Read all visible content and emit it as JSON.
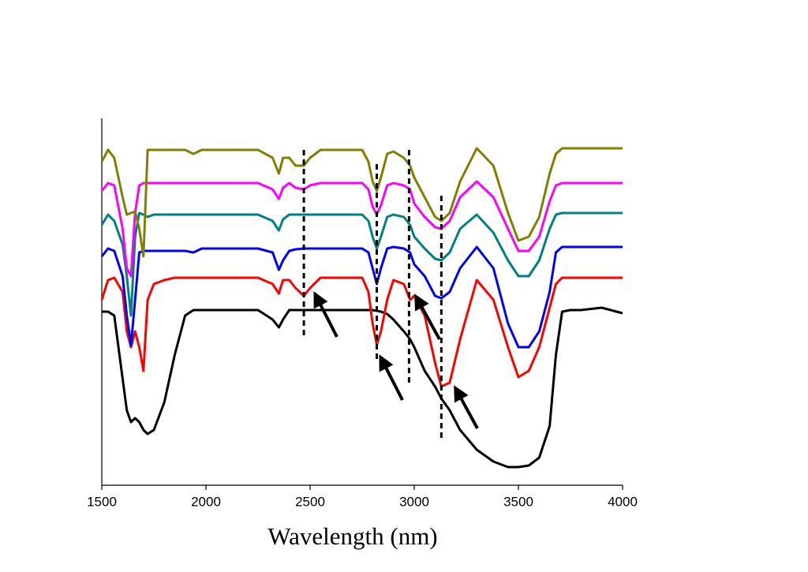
{
  "chart_data": {
    "type": "line",
    "x_label": "Wavelength (nm)",
    "xlim": [
      1500,
      4000
    ],
    "xticks": [
      1500,
      2000,
      2500,
      3000,
      3500,
      4000
    ],
    "ylim": [
      0,
      465
    ],
    "x": [
      1500,
      1530,
      1560,
      1600,
      1620,
      1640,
      1660,
      1680,
      1700,
      1720,
      1750,
      1800,
      1850,
      1900,
      1940,
      1980,
      2050,
      2150,
      2250,
      2320,
      2350,
      2370,
      2400,
      2430,
      2470,
      2500,
      2550,
      2650,
      2750,
      2780,
      2800,
      2820,
      2840,
      2870,
      2900,
      2950,
      2980,
      3000,
      3050,
      3100,
      3130,
      3170,
      3220,
      3300,
      3380,
      3450,
      3500,
      3550,
      3600,
      3650,
      3680,
      3710,
      3750,
      3800,
      3900,
      4000
    ],
    "series": [
      {
        "color": "#000000",
        "values": [
          220,
          220,
          215,
          135,
          95,
          80,
          85,
          80,
          70,
          65,
          70,
          105,
          165,
          215,
          222,
          222,
          222,
          222,
          222,
          210,
          200,
          210,
          222,
          222,
          222,
          222,
          222,
          222,
          222,
          222,
          222,
          221,
          220,
          217,
          210,
          195,
          185,
          175,
          145,
          125,
          110,
          95,
          70,
          45,
          30,
          23,
          23,
          25,
          35,
          75,
          165,
          220,
          222,
          222,
          225,
          218
        ]
      },
      {
        "color": "#ff0000",
        "values": [
          235,
          260,
          263,
          245,
          195,
          175,
          195,
          175,
          145,
          235,
          255,
          260,
          263,
          263,
          263,
          263,
          263,
          263,
          263,
          255,
          243,
          260,
          260,
          250,
          240,
          250,
          263,
          263,
          263,
          245,
          205,
          178,
          195,
          235,
          260,
          255,
          235,
          240,
          215,
          155,
          125,
          130,
          185,
          260,
          235,
          175,
          137,
          145,
          175,
          225,
          255,
          263,
          263,
          263,
          263,
          263
        ]
      },
      {
        "color": "#0000ff",
        "values": [
          290,
          300,
          297,
          265,
          215,
          177,
          235,
          295,
          297,
          297,
          297,
          297,
          297,
          297,
          295,
          300,
          300,
          300,
          300,
          295,
          273,
          285,
          297,
          299,
          300,
          300,
          300,
          300,
          300,
          295,
          275,
          255,
          275,
          300,
          302,
          300,
          295,
          280,
          265,
          240,
          237,
          245,
          275,
          302,
          275,
          205,
          175,
          175,
          195,
          245,
          295,
          302,
          302,
          302,
          302,
          302
        ]
      },
      {
        "color": "#008080",
        "values": [
          330,
          343,
          335,
          305,
          265,
          215,
          315,
          345,
          343,
          340,
          343,
          343,
          343,
          343,
          343,
          343,
          343,
          343,
          343,
          335,
          323,
          337,
          343,
          343,
          343,
          343,
          343,
          343,
          343,
          335,
          315,
          300,
          315,
          340,
          343,
          340,
          330,
          315,
          300,
          287,
          285,
          295,
          325,
          343,
          320,
          285,
          265,
          265,
          285,
          325,
          343,
          345,
          345,
          345,
          345,
          345
        ]
      },
      {
        "color": "#ff00ff",
        "values": [
          373,
          383,
          380,
          325,
          275,
          265,
          345,
          380,
          383,
          383,
          383,
          383,
          383,
          383,
          383,
          383,
          383,
          383,
          383,
          375,
          363,
          377,
          383,
          377,
          375,
          380,
          383,
          383,
          383,
          375,
          353,
          343,
          355,
          380,
          383,
          380,
          375,
          357,
          340,
          327,
          325,
          335,
          365,
          385,
          365,
          325,
          297,
          297,
          315,
          360,
          380,
          383,
          383,
          383,
          383,
          383
        ]
      },
      {
        "color": "#808000",
        "values": [
          410,
          425,
          415,
          365,
          343,
          345,
          347,
          325,
          290,
          425,
          425,
          425,
          425,
          425,
          420,
          425,
          425,
          425,
          425,
          415,
          395,
          415,
          415,
          405,
          405,
          415,
          425,
          425,
          425,
          410,
          385,
          373,
          390,
          420,
          423,
          415,
          405,
          390,
          365,
          340,
          335,
          345,
          385,
          427,
          405,
          345,
          310,
          315,
          340,
          395,
          420,
          427,
          427,
          427,
          427,
          427
        ]
      }
    ],
    "vlines": [
      {
        "x": 2470,
        "ymin": 190,
        "ymax": 425
      },
      {
        "x": 2820,
        "ymin": 160,
        "ymax": 410
      },
      {
        "x": 2975,
        "ymin": 130,
        "ymax": 425
      },
      {
        "x": 3130,
        "ymin": 60,
        "ymax": 372
      }
    ]
  }
}
